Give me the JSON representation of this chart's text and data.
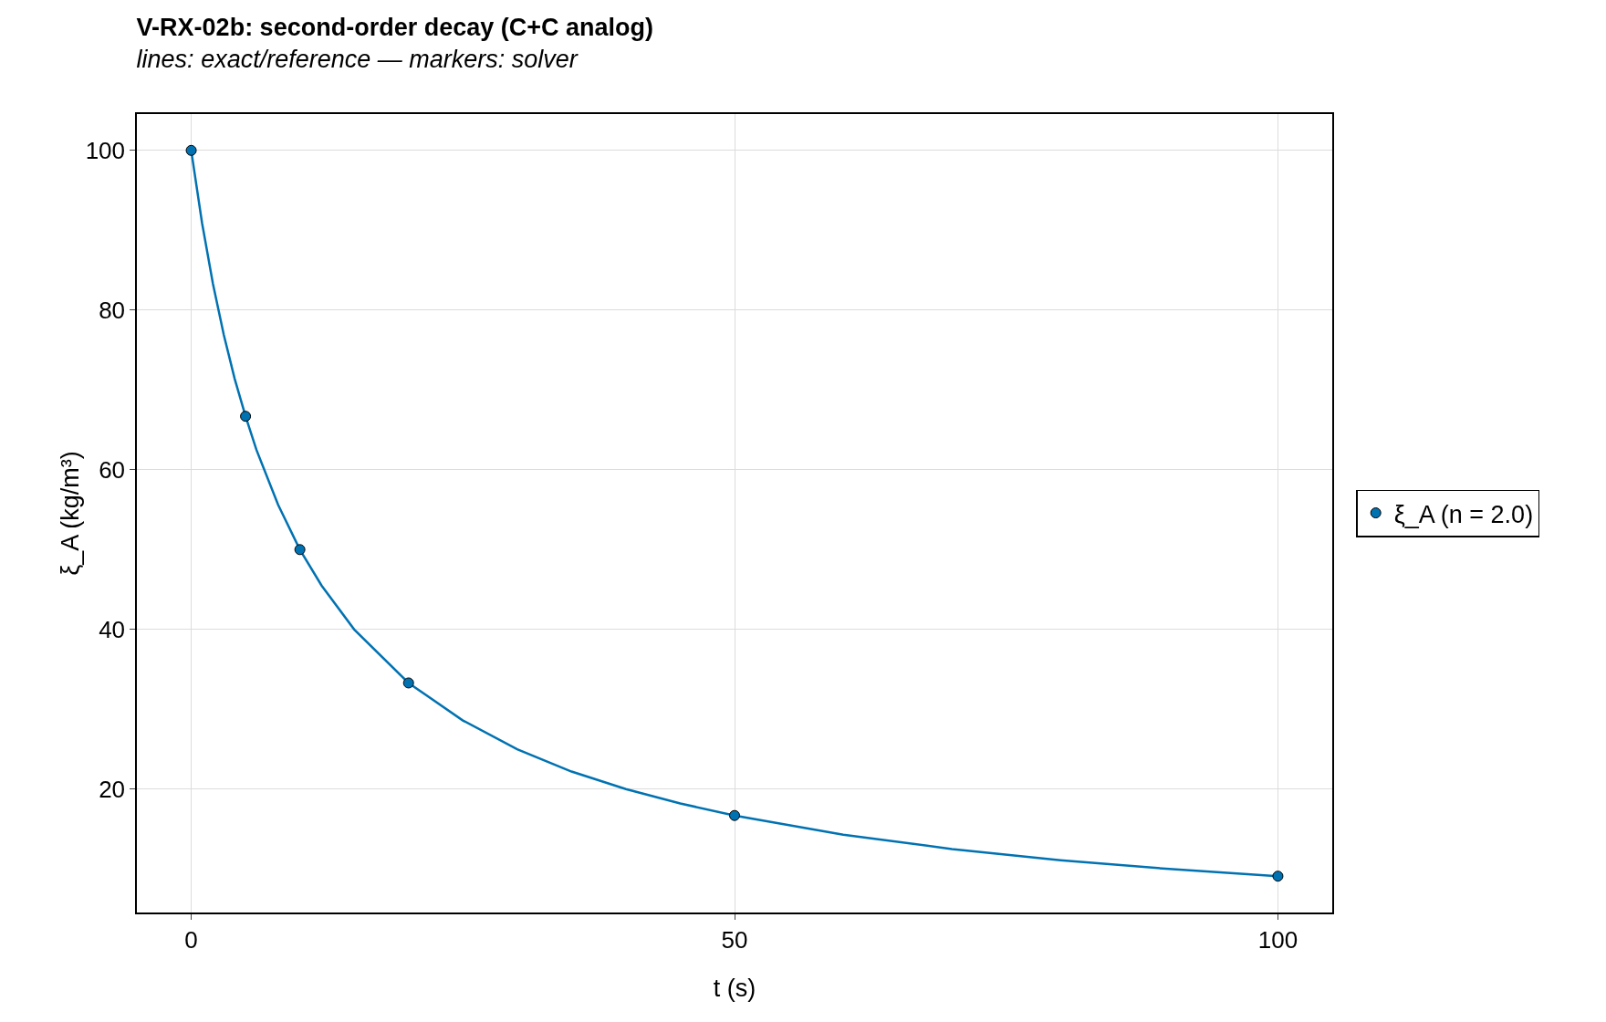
{
  "chart_data": {
    "type": "scatter",
    "title": "V-RX-02b: second-order decay (C+C analog)",
    "subtitle": "lines: exact/reference — markers: solver",
    "xlabel": "t (s)",
    "ylabel": "ξ_A (kg/m³)",
    "xlim": [
      -5,
      105
    ],
    "xticks": [
      0,
      50,
      100
    ],
    "ylim": [
      4.55,
      104.55
    ],
    "yticks": [
      20,
      40,
      60,
      80,
      100
    ],
    "grid": true,
    "legend": "right",
    "marker": "circle",
    "series": [
      {
        "type": "line",
        "marker": "none",
        "color": "#0072b2",
        "x": [
          0,
          1,
          2,
          3,
          4,
          5,
          6,
          8,
          10,
          12,
          15,
          20,
          25,
          30,
          35,
          40,
          45,
          50,
          60,
          70,
          80,
          90,
          100
        ],
        "values": [
          100,
          90.9,
          83.3,
          76.9,
          71.4,
          66.7,
          62.5,
          55.6,
          50,
          45.5,
          40,
          33.3,
          28.6,
          25,
          22.2,
          20,
          18.2,
          16.7,
          14.3,
          12.5,
          11.1,
          10,
          9.1
        ]
      },
      {
        "name": "ξ_A (n = 2.0)",
        "color": "#0072b2",
        "x": [
          0,
          5,
          10,
          20,
          50,
          100
        ],
        "values": [
          100,
          66.7,
          50,
          33.3,
          16.7,
          9.1
        ]
      }
    ]
  }
}
